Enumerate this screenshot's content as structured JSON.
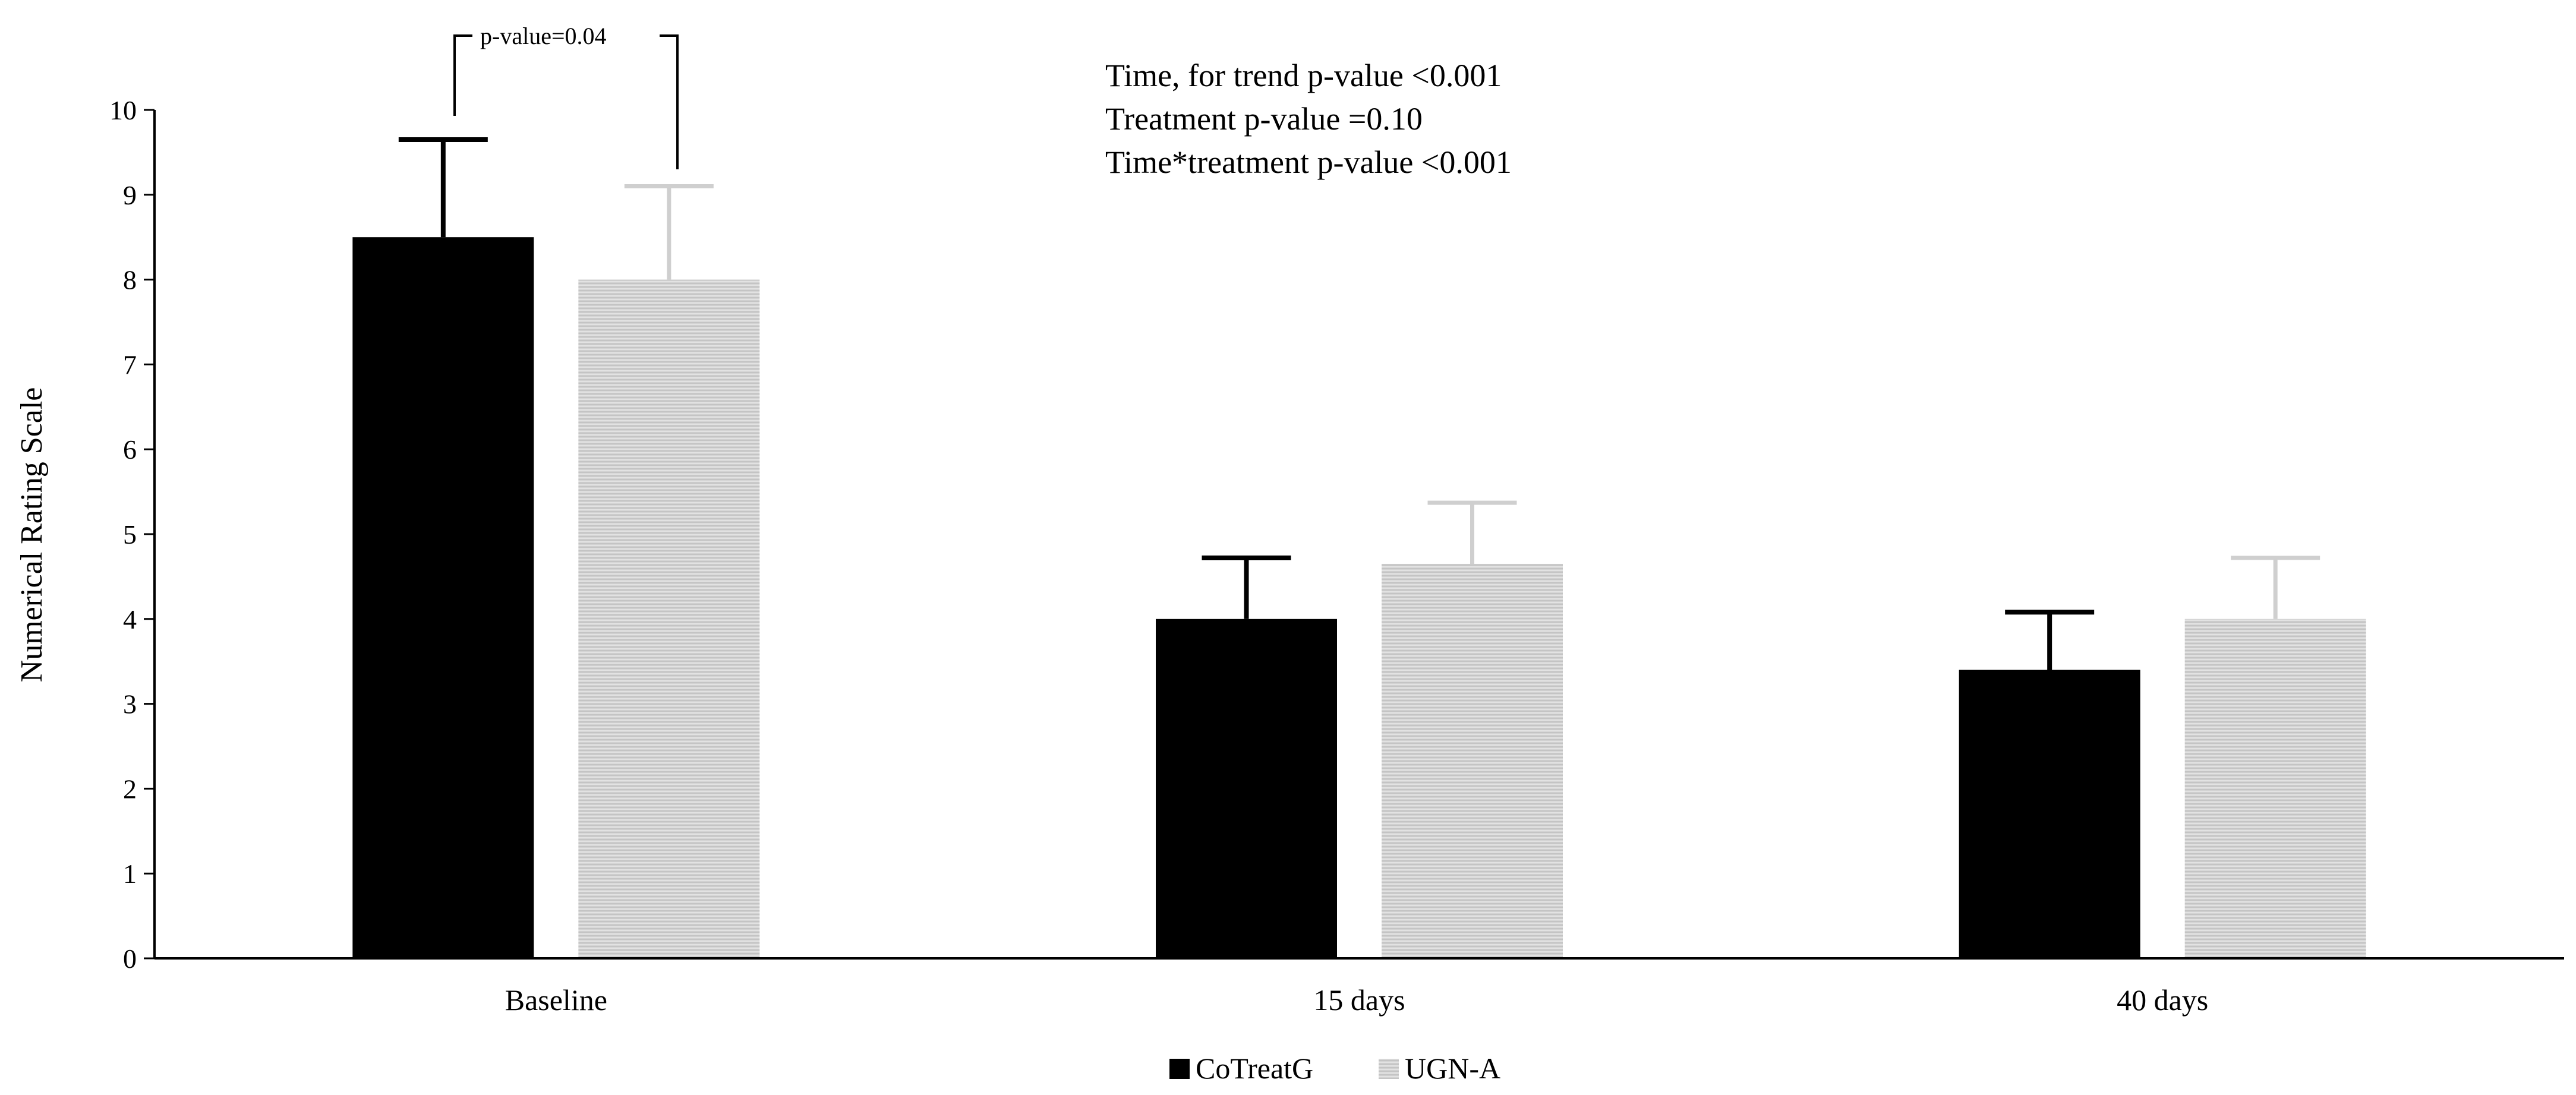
{
  "chart_data": {
    "type": "bar",
    "title": "",
    "xlabel": "",
    "ylabel": "Numerical Rating Scale",
    "ylim": [
      0,
      10
    ],
    "yticks": [
      0,
      1,
      2,
      3,
      4,
      5,
      6,
      7,
      8,
      9,
      10
    ],
    "grid": false,
    "legend_position": "bottom",
    "categories": [
      "Baseline",
      "15 days",
      "40 days"
    ],
    "series": [
      {
        "name": "CoTreatG",
        "values": [
          8.5,
          4.0,
          3.4
        ],
        "error": [
          1.15,
          0.72,
          0.68
        ],
        "color": "#000000"
      },
      {
        "name": "UGN-A",
        "values": [
          8.0,
          4.65,
          4.0
        ],
        "error": [
          1.1,
          0.72,
          0.72
        ],
        "color": "#d9d9d9"
      }
    ],
    "annotations": {
      "stats": [
        "Time, for trend p-value <0.001",
        "Treatment p-value =0.10",
        "Time*treatment p-value <0.001"
      ],
      "significance": {
        "label": "p-value=0.04",
        "category": "Baseline"
      }
    }
  }
}
